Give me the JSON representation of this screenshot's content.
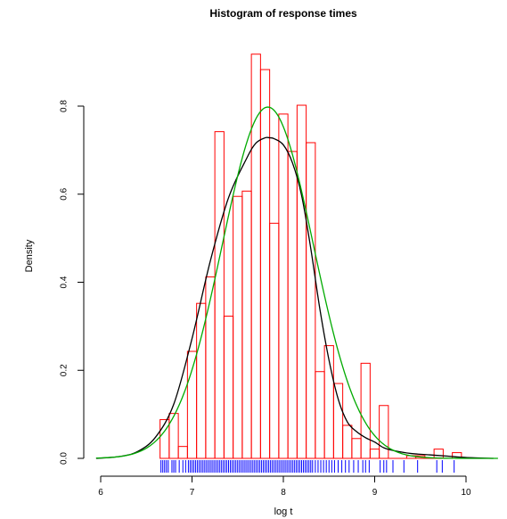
{
  "chart_data": {
    "type": "histogram",
    "title": "Histogram of response times",
    "xlabel": "log t",
    "ylabel": "Density",
    "xlim": [
      6,
      10.4
    ],
    "ylim": [
      0,
      0.92
    ],
    "x_ticks": [
      6,
      7,
      8,
      9,
      10
    ],
    "x_tick_labels": [
      "6",
      "7",
      "8",
      "9",
      "10"
    ],
    "y_ticks": [
      0.0,
      0.2,
      0.4,
      0.6,
      0.8
    ],
    "y_tick_labels": [
      "0.0",
      "0.2",
      "0.4",
      "0.6",
      "0.8"
    ],
    "bin_width": 0.1,
    "bins_start": 6.65,
    "bins": [
      {
        "start": 6.65,
        "density": 0.088
      },
      {
        "start": 6.75,
        "density": 0.102
      },
      {
        "start": 6.85,
        "density": 0.027
      },
      {
        "start": 6.95,
        "density": 0.243
      },
      {
        "start": 7.05,
        "density": 0.352
      },
      {
        "start": 7.15,
        "density": 0.412
      },
      {
        "start": 7.25,
        "density": 0.742
      },
      {
        "start": 7.35,
        "density": 0.323
      },
      {
        "start": 7.45,
        "density": 0.595
      },
      {
        "start": 7.55,
        "density": 0.607
      },
      {
        "start": 7.65,
        "density": 0.918
      },
      {
        "start": 7.75,
        "density": 0.883
      },
      {
        "start": 7.85,
        "density": 0.534
      },
      {
        "start": 7.95,
        "density": 0.782
      },
      {
        "start": 8.05,
        "density": 0.697
      },
      {
        "start": 8.15,
        "density": 0.802
      },
      {
        "start": 8.25,
        "density": 0.717
      },
      {
        "start": 8.35,
        "density": 0.197
      },
      {
        "start": 8.45,
        "density": 0.256
      },
      {
        "start": 8.55,
        "density": 0.17
      },
      {
        "start": 8.65,
        "density": 0.075
      },
      {
        "start": 8.75,
        "density": 0.045
      },
      {
        "start": 8.85,
        "density": 0.216
      },
      {
        "start": 8.95,
        "density": 0.021
      },
      {
        "start": 9.05,
        "density": 0.12
      },
      {
        "start": 9.15,
        "density": 0.0
      },
      {
        "start": 9.25,
        "density": 0.0
      },
      {
        "start": 9.35,
        "density": 0.006
      },
      {
        "start": 9.45,
        "density": 0.006
      },
      {
        "start": 9.55,
        "density": 0.0
      },
      {
        "start": 9.65,
        "density": 0.021
      },
      {
        "start": 9.75,
        "density": 0.0
      },
      {
        "start": 9.85,
        "density": 0.013
      }
    ],
    "series": [
      {
        "kind": "density",
        "color": "#000000",
        "x": [
          5.95,
          6.2,
          6.4,
          6.6,
          6.8,
          7.0,
          7.2,
          7.4,
          7.6,
          7.7,
          7.8,
          7.85,
          7.9,
          8.0,
          8.1,
          8.2,
          8.3,
          8.4,
          8.5,
          8.6,
          8.7,
          8.8,
          8.9,
          9.0,
          9.1,
          9.2,
          9.4,
          9.6,
          9.8,
          10.0,
          10.3
        ],
        "y": [
          0.0,
          0.004,
          0.015,
          0.048,
          0.123,
          0.272,
          0.448,
          0.592,
          0.682,
          0.716,
          0.728,
          0.728,
          0.726,
          0.712,
          0.671,
          0.597,
          0.477,
          0.339,
          0.223,
          0.135,
          0.083,
          0.061,
          0.047,
          0.037,
          0.024,
          0.018,
          0.011,
          0.008,
          0.005,
          0.002,
          0.0
        ]
      },
      {
        "kind": "normal-fit",
        "color": "#00aa00",
        "mean": 7.83,
        "sd": 0.5
      }
    ],
    "rug": {
      "color": "#0000ff",
      "x": [
        6.66,
        6.68,
        6.7,
        6.72,
        6.74,
        6.78,
        6.8,
        6.82,
        6.86,
        6.9,
        6.93,
        6.96,
        6.98,
        7.0,
        7.02,
        7.04,
        7.06,
        7.08,
        7.1,
        7.12,
        7.14,
        7.16,
        7.18,
        7.2,
        7.22,
        7.24,
        7.26,
        7.28,
        7.3,
        7.32,
        7.34,
        7.36,
        7.38,
        7.4,
        7.42,
        7.44,
        7.46,
        7.48,
        7.5,
        7.52,
        7.54,
        7.56,
        7.58,
        7.6,
        7.62,
        7.64,
        7.66,
        7.68,
        7.7,
        7.72,
        7.74,
        7.76,
        7.78,
        7.8,
        7.82,
        7.84,
        7.86,
        7.88,
        7.9,
        7.92,
        7.94,
        7.96,
        7.98,
        8.0,
        8.02,
        8.04,
        8.06,
        8.08,
        8.1,
        8.12,
        8.14,
        8.16,
        8.18,
        8.2,
        8.22,
        8.24,
        8.26,
        8.28,
        8.3,
        8.32,
        8.35,
        8.38,
        8.41,
        8.44,
        8.47,
        8.5,
        8.53,
        8.56,
        8.6,
        8.64,
        8.68,
        8.72,
        8.77,
        8.82,
        8.87,
        8.9,
        8.94,
        9.06,
        9.1,
        9.13,
        9.2,
        9.32,
        9.47,
        9.68,
        9.74,
        9.87
      ]
    }
  }
}
